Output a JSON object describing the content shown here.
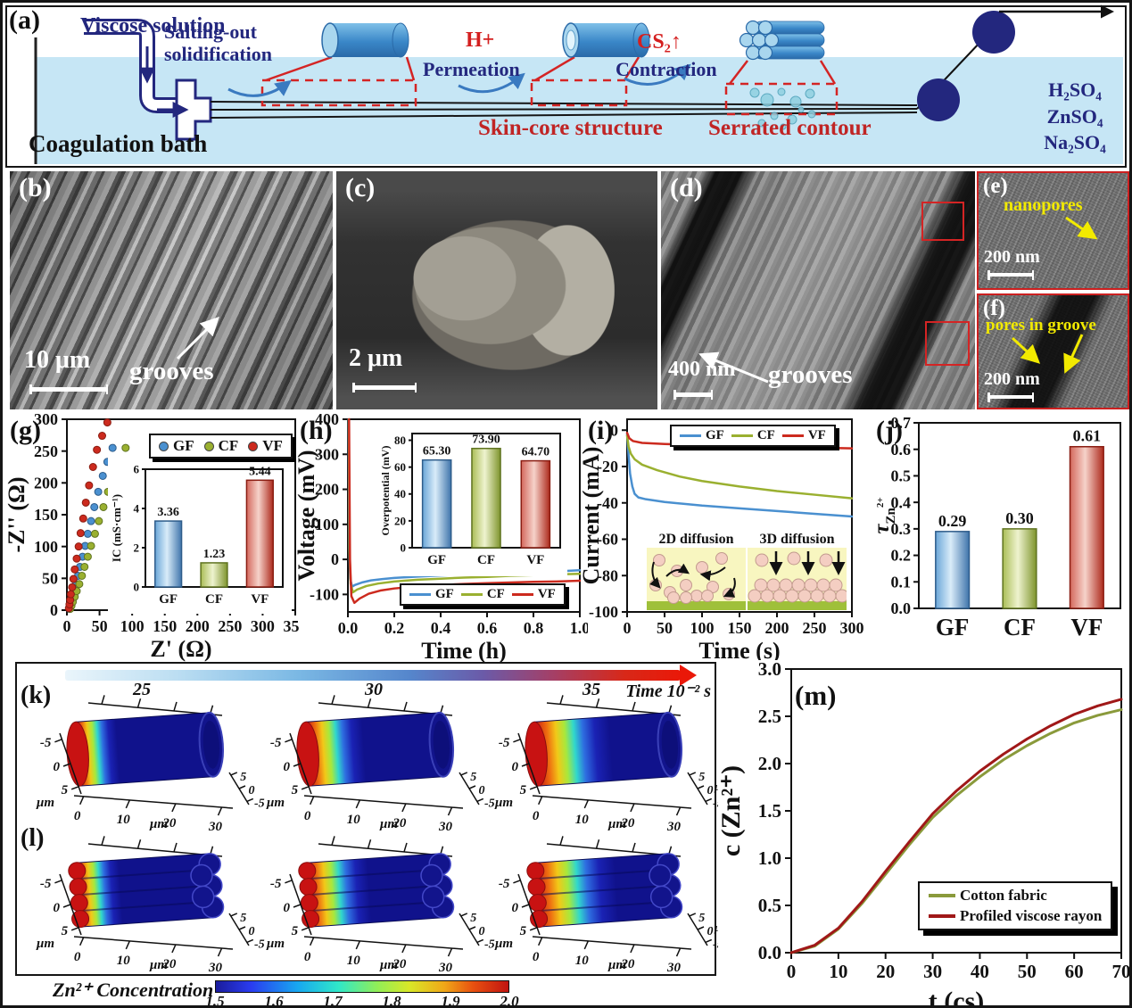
{
  "figure": {
    "labels": {
      "a": "(a)",
      "b": "(b)",
      "c": "(c)",
      "d": "(d)",
      "e": "(e)",
      "f": "(f)",
      "g": "(g)",
      "h": "(h)",
      "i": "(i)",
      "j": "(j)",
      "k": "(k)",
      "l": "(l)",
      "m": "(m)"
    }
  },
  "panel_a": {
    "viscose_solution": "Viscose solution",
    "salting_out": "Salting-out solidification",
    "h_plus": "H+",
    "permeation": "Permeation",
    "cs2": "CS₂↑",
    "contraction": "Contraction",
    "skin_core": "Skin-core structure",
    "serrated": "Serrated contour",
    "coagulation_bath": "Coagulation bath",
    "salts": [
      "H₂SO₄",
      "ZnSO₄",
      "Na₂SO₄"
    ]
  },
  "sem": {
    "b": {
      "scale": "10 μm",
      "note": "grooves"
    },
    "c": {
      "scale": "2 μm"
    },
    "d": {
      "scale": "400 nm",
      "note": "grooves"
    },
    "e": {
      "scale": "200 nm",
      "note": "nanopores"
    },
    "f": {
      "scale": "200 nm",
      "note": "pores in groove"
    }
  },
  "colors": {
    "gf": "#4a90d0",
    "cf": "#9ab030",
    "vf": "#cc2a1e",
    "cotton": "#8a9a3b",
    "rayon": "#a01818",
    "navy": "#23277e",
    "water": "#c6e6f5"
  },
  "chart_data": [
    {
      "id": "g",
      "type": "scatter",
      "xlabel": "Z' (Ω)",
      "ylabel": "-Z'' (Ω)",
      "xlim": [
        0,
        350
      ],
      "ylim": [
        0,
        300
      ],
      "xticks": [
        0,
        50,
        100,
        150,
        200,
        250,
        300,
        350
      ],
      "yticks": [
        0,
        50,
        100,
        150,
        200,
        250,
        300
      ],
      "legend": [
        "GF",
        "CF",
        "VF"
      ],
      "series": [
        {
          "name": "GF",
          "color": "#4a90d0",
          "points": [
            [
              4,
              2
            ],
            [
              5,
              7
            ],
            [
              7,
              13
            ],
            [
              9,
              21
            ],
            [
              11,
              30
            ],
            [
              14,
              41
            ],
            [
              17,
              54
            ],
            [
              20,
              68
            ],
            [
              24,
              84
            ],
            [
              28,
              101
            ],
            [
              32,
              120
            ],
            [
              37,
              140
            ],
            [
              42,
              162
            ],
            [
              48,
              186
            ],
            [
              55,
              211
            ],
            [
              62,
              233
            ],
            [
              70,
              255
            ]
          ]
        },
        {
          "name": "CF",
          "color": "#9ab030",
          "points": [
            [
              5,
              2
            ],
            [
              7,
              7
            ],
            [
              9,
              13
            ],
            [
              12,
              21
            ],
            [
              15,
              30
            ],
            [
              19,
              41
            ],
            [
              23,
              54
            ],
            [
              27,
              68
            ],
            [
              32,
              84
            ],
            [
              37,
              101
            ],
            [
              43,
              120
            ],
            [
              49,
              140
            ],
            [
              56,
              162
            ],
            [
              63,
              186
            ],
            [
              71,
              211
            ],
            [
              80,
              232
            ],
            [
              90,
              255
            ]
          ]
        },
        {
          "name": "VF",
          "color": "#cc2a1e",
          "points": [
            [
              3,
              3
            ],
            [
              4,
              9
            ],
            [
              5,
              16
            ],
            [
              6,
              25
            ],
            [
              8,
              36
            ],
            [
              10,
              49
            ],
            [
              12,
              64
            ],
            [
              15,
              81
            ],
            [
              18,
              100
            ],
            [
              21,
              121
            ],
            [
              25,
              144
            ],
            [
              29,
              169
            ],
            [
              34,
              196
            ],
            [
              40,
              225
            ],
            [
              46,
              252
            ],
            [
              54,
              274
            ],
            [
              62,
              295
            ]
          ]
        }
      ],
      "inset": {
        "type": "bar",
        "ylabel": "IC (mS·cm⁻¹)",
        "ylim": [
          0,
          6
        ],
        "yticks": [
          0,
          2,
          4,
          6
        ],
        "categories": [
          "GF",
          "CF",
          "VF"
        ],
        "values": [
          3.36,
          1.23,
          5.44
        ],
        "value_labels": [
          "3.36",
          "1.23",
          "5.44"
        ]
      }
    },
    {
      "id": "h",
      "type": "line",
      "xlabel": "Time (h)",
      "ylabel": "Voltage (mV)",
      "xlim": [
        0,
        1.0
      ],
      "ylim": [
        -150,
        400
      ],
      "xticks": [
        0,
        0.2,
        0.4,
        0.6,
        0.8,
        1.0
      ],
      "xtick_labels": [
        "0.0",
        "0.2",
        "0.4",
        "0.6",
        "0.8",
        "1.0"
      ],
      "yticks": [
        -100,
        0,
        100,
        200,
        300,
        400
      ],
      "legend": [
        "GF",
        "CF",
        "VF"
      ],
      "series": [
        {
          "name": "GF",
          "color": "#4a90d0",
          "points": [
            [
              0.003,
              400
            ],
            [
              0.006,
              30
            ],
            [
              0.01,
              -55
            ],
            [
              0.018,
              -78
            ],
            [
              0.03,
              -73
            ],
            [
              0.06,
              -66
            ],
            [
              0.1,
              -60
            ],
            [
              0.15,
              -56
            ],
            [
              0.2,
              -53
            ],
            [
              0.3,
              -49
            ],
            [
              0.4,
              -46
            ],
            [
              0.5,
              -43
            ],
            [
              0.6,
              -41
            ],
            [
              0.7,
              -38
            ],
            [
              0.8,
              -36
            ],
            [
              0.9,
              -34
            ],
            [
              1.0,
              -31
            ]
          ]
        },
        {
          "name": "CF",
          "color": "#9ab030",
          "points": [
            [
              0.004,
              400
            ],
            [
              0.007,
              20
            ],
            [
              0.012,
              -70
            ],
            [
              0.022,
              -94
            ],
            [
              0.04,
              -86
            ],
            [
              0.08,
              -76
            ],
            [
              0.13,
              -69
            ],
            [
              0.2,
              -63
            ],
            [
              0.3,
              -58
            ],
            [
              0.4,
              -55
            ],
            [
              0.5,
              -52
            ],
            [
              0.6,
              -50
            ],
            [
              0.7,
              -47
            ],
            [
              0.8,
              -45
            ],
            [
              0.9,
              -43
            ],
            [
              1.0,
              -41
            ]
          ]
        },
        {
          "name": "VF",
          "color": "#cc2a1e",
          "points": [
            [
              0.005,
              400
            ],
            [
              0.009,
              0
            ],
            [
              0.015,
              -105
            ],
            [
              0.028,
              -124
            ],
            [
              0.05,
              -112
            ],
            [
              0.09,
              -98
            ],
            [
              0.14,
              -89
            ],
            [
              0.2,
              -83
            ],
            [
              0.3,
              -77
            ],
            [
              0.4,
              -73
            ],
            [
              0.5,
              -70
            ],
            [
              0.6,
              -68
            ],
            [
              0.7,
              -66
            ],
            [
              0.8,
              -64
            ],
            [
              0.9,
              -63
            ],
            [
              1.0,
              -61
            ]
          ]
        }
      ],
      "inset": {
        "type": "bar",
        "ylabel": "Overpotential (mV)",
        "ylim": [
          0,
          85
        ],
        "yticks": [
          0,
          20,
          40,
          60,
          80
        ],
        "categories": [
          "GF",
          "CF",
          "VF"
        ],
        "values": [
          65.3,
          73.9,
          64.7
        ],
        "value_labels": [
          "65.30",
          "73.90",
          "64.70"
        ]
      }
    },
    {
      "id": "i",
      "type": "line",
      "xlabel": "Time (s)",
      "ylabel": "Current (mA)",
      "xlim": [
        0,
        300
      ],
      "ylim": [
        -100,
        6
      ],
      "xticks": [
        0,
        50,
        100,
        150,
        200,
        250,
        300
      ],
      "yticks": [
        0,
        -20,
        -40,
        -60,
        -80,
        -100
      ],
      "legend": [
        "GF",
        "CF",
        "VF"
      ],
      "series": [
        {
          "name": "GF",
          "color": "#4a90d0",
          "points": [
            [
              0,
              -2
            ],
            [
              2,
              -14
            ],
            [
              4,
              -24
            ],
            [
              7,
              -31
            ],
            [
              10,
              -35
            ],
            [
              15,
              -37
            ],
            [
              25,
              -38
            ],
            [
              50,
              -39.5
            ],
            [
              100,
              -41.5
            ],
            [
              150,
              -43
            ],
            [
              200,
              -44.5
            ],
            [
              250,
              -46
            ],
            [
              300,
              -47.5
            ]
          ]
        },
        {
          "name": "CF",
          "color": "#9ab030",
          "points": [
            [
              0,
              -3
            ],
            [
              2,
              -9
            ],
            [
              5,
              -13
            ],
            [
              10,
              -16
            ],
            [
              20,
              -19
            ],
            [
              40,
              -22
            ],
            [
              70,
              -25.5
            ],
            [
              100,
              -28
            ],
            [
              150,
              -31
            ],
            [
              200,
              -33.5
            ],
            [
              250,
              -35.5
            ],
            [
              300,
              -37.5
            ]
          ]
        },
        {
          "name": "VF",
          "color": "#cc2a1e",
          "points": [
            [
              0,
              -1.5
            ],
            [
              3,
              -4.5
            ],
            [
              8,
              -6
            ],
            [
              20,
              -7
            ],
            [
              50,
              -7.6
            ],
            [
              100,
              -8.2
            ],
            [
              150,
              -8.8
            ],
            [
              200,
              -9.2
            ],
            [
              250,
              -9.6
            ],
            [
              300,
              -10
            ]
          ]
        }
      ],
      "inset": {
        "left_title": "2D diffusion",
        "right_title": "3D diffusion"
      }
    },
    {
      "id": "j",
      "type": "bar",
      "ylabel_main": "τ",
      "ylabel_sub": "Zn",
      "ylabel_sup": "2+",
      "ylim": [
        0,
        0.7
      ],
      "yticks": [
        0,
        0.1,
        0.2,
        0.3,
        0.4,
        0.5,
        0.6,
        0.7
      ],
      "ytick_labels": [
        "0.0",
        "0.1",
        "0.2",
        "0.3",
        "0.4",
        "0.5",
        "0.6",
        "0.7"
      ],
      "categories": [
        "GF",
        "CF",
        "VF"
      ],
      "values": [
        0.29,
        0.3,
        0.61
      ],
      "value_labels": [
        "0.29",
        "0.30",
        "0.61"
      ],
      "colors": [
        "#4a90d0",
        "#9ab030",
        "#cc2a1e"
      ]
    },
    {
      "id": "k",
      "type": "3d-cylinders",
      "time_label": "Time 10⁻² s",
      "time_ticks": [
        "25",
        "30",
        "35"
      ],
      "snapshots": [
        0.3,
        0.42,
        0.56
      ],
      "axes": {
        "left_ticks": [
          "-5",
          "0",
          "5"
        ],
        "left_unit": "μm",
        "bottom_ticks": [
          "0",
          "10",
          "20",
          "30"
        ],
        "bottom_unit": "μm",
        "right_ticks": [
          "5",
          "0",
          "-5"
        ],
        "right_unit": "μm"
      }
    },
    {
      "id": "l",
      "type": "3d-cylinders-bundle",
      "snapshots": [
        0.32,
        0.46,
        0.6
      ],
      "axes": {
        "left_ticks": [
          "-5",
          "0",
          "5"
        ],
        "left_unit": "μm",
        "bottom_ticks": [
          "0",
          "10",
          "20",
          "30"
        ],
        "bottom_unit": "μm",
        "right_ticks": [
          "5",
          "0",
          "-5"
        ],
        "right_unit": "μm"
      },
      "colorbar": {
        "label": "Zn²⁺ Concentration",
        "tick_labels": [
          "1.5",
          "1.6",
          "1.7",
          "1.8",
          "1.9",
          "2.0"
        ]
      }
    },
    {
      "id": "m",
      "type": "line",
      "xlabel": "t (cs)",
      "ylabel": "c (Zn²⁺)",
      "xlim": [
        0,
        70
      ],
      "ylim": [
        0,
        3
      ],
      "xticks": [
        0,
        10,
        20,
        30,
        40,
        50,
        60,
        70
      ],
      "yticks": [
        0,
        0.5,
        1,
        1.5,
        2,
        2.5,
        3
      ],
      "ytick_labels": [
        "0.0",
        "0.5",
        "1.0",
        "1.5",
        "2.0",
        "2.5",
        "3.0"
      ],
      "legend": [
        "Cotton fabric",
        "Profiled viscose rayon"
      ],
      "series": [
        {
          "name": "Cotton fabric",
          "color": "#8a9a3b",
          "points": [
            [
              0,
              0
            ],
            [
              5,
              0.07
            ],
            [
              10,
              0.25
            ],
            [
              15,
              0.52
            ],
            [
              20,
              0.83
            ],
            [
              25,
              1.14
            ],
            [
              30,
              1.43
            ],
            [
              35,
              1.66
            ],
            [
              40,
              1.86
            ],
            [
              45,
              2.04
            ],
            [
              50,
              2.19
            ],
            [
              55,
              2.32
            ],
            [
              60,
              2.43
            ],
            [
              65,
              2.51
            ],
            [
              70,
              2.57
            ]
          ]
        },
        {
          "name": "Profiled viscose rayon",
          "color": "#a01818",
          "points": [
            [
              0,
              0
            ],
            [
              5,
              0.08
            ],
            [
              10,
              0.26
            ],
            [
              15,
              0.54
            ],
            [
              20,
              0.86
            ],
            [
              25,
              1.17
            ],
            [
              30,
              1.47
            ],
            [
              35,
              1.71
            ],
            [
              40,
              1.92
            ],
            [
              45,
              2.1
            ],
            [
              50,
              2.26
            ],
            [
              55,
              2.4
            ],
            [
              60,
              2.52
            ],
            [
              65,
              2.61
            ],
            [
              70,
              2.68
            ]
          ]
        }
      ]
    }
  ]
}
